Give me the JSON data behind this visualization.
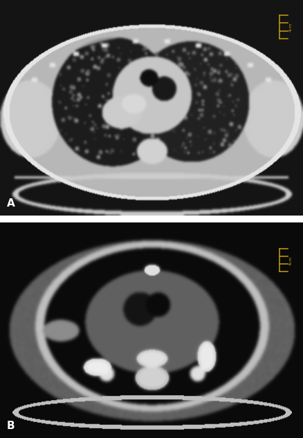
{
  "figure_width": 4.39,
  "figure_height": 6.34,
  "dpi": 100,
  "bg_color": "#ffffff",
  "panel_sep_color": "#ffffff",
  "panel_A": {
    "label": "A",
    "label_color": "#ffffff",
    "bg_color": "#111111",
    "scale_bar_color": "#b8960c",
    "scale_bar_text": "4cm"
  },
  "panel_B": {
    "label": "B",
    "label_color": "#ffffff",
    "bg_color": "#080808",
    "scale_bar_color": "#b8960c",
    "scale_bar_text": "4cm"
  }
}
